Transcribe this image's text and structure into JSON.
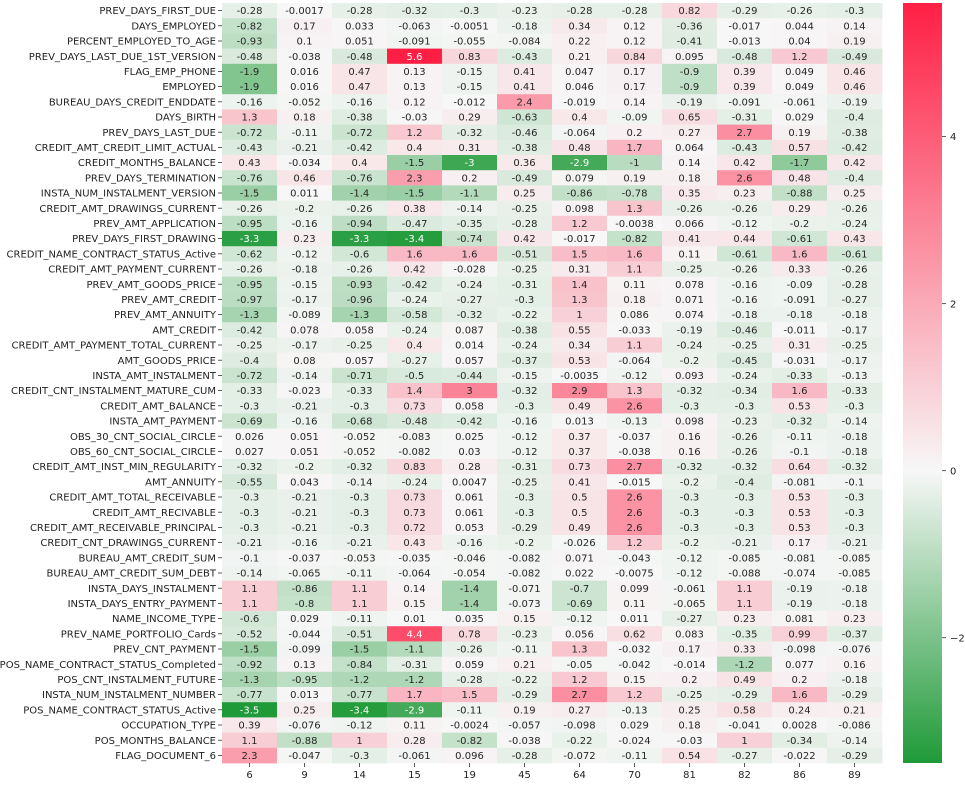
{
  "chart_data": {
    "type": "heatmap",
    "title": "",
    "xlabel": "",
    "ylabel": "",
    "x": [
      "6",
      "9",
      "14",
      "15",
      "19",
      "45",
      "64",
      "70",
      "81",
      "82",
      "86",
      "89"
    ],
    "y": [
      "PREV_DAYS_FIRST_DUE",
      "DAYS_EMPLOYED",
      "PERCENT_EMPLOYED_TO_AGE",
      "PREV_DAYS_LAST_DUE_1ST_VERSION",
      "FLAG_EMP_PHONE",
      "EMPLOYED",
      "BUREAU_DAYS_CREDIT_ENDDATE",
      "DAYS_BIRTH",
      "PREV_DAYS_LAST_DUE",
      "CREDIT_AMT_CREDIT_LIMIT_ACTUAL",
      "CREDIT_MONTHS_BALANCE",
      "PREV_DAYS_TERMINATION",
      "INSTA_NUM_INSTALMENT_VERSION",
      "CREDIT_AMT_DRAWINGS_CURRENT",
      "PREV_AMT_APPLICATION",
      "PREV_DAYS_FIRST_DRAWING",
      "CREDIT_NAME_CONTRACT_STATUS_Active",
      "CREDIT_AMT_PAYMENT_CURRENT",
      "PREV_AMT_GOODS_PRICE",
      "PREV_AMT_CREDIT",
      "PREV_AMT_ANNUITY",
      "AMT_CREDIT",
      "CREDIT_AMT_PAYMENT_TOTAL_CURRENT",
      "AMT_GOODS_PRICE",
      "INSTA_AMT_INSTALMENT",
      "CREDIT_CNT_INSTALMENT_MATURE_CUM",
      "CREDIT_AMT_BALANCE",
      "INSTA_AMT_PAYMENT",
      "OBS_30_CNT_SOCIAL_CIRCLE",
      "OBS_60_CNT_SOCIAL_CIRCLE",
      "CREDIT_AMT_INST_MIN_REGULARITY",
      "AMT_ANNUITY",
      "CREDIT_AMT_TOTAL_RECEIVABLE",
      "CREDIT_AMT_RECIVABLE",
      "CREDIT_AMT_RECEIVABLE_PRINCIPAL",
      "CREDIT_CNT_DRAWINGS_CURRENT",
      "BUREAU_AMT_CREDIT_SUM",
      "BUREAU_AMT_CREDIT_SUM_DEBT",
      "INSTA_DAYS_INSTALMENT",
      "INSTA_DAYS_ENTRY_PAYMENT",
      "NAME_INCOME_TYPE",
      "PREV_NAME_PORTFOLIO_Cards",
      "PREV_CNT_PAYMENT",
      "POS_NAME_CONTRACT_STATUS_Completed",
      "POS_CNT_INSTALMENT_FUTURE",
      "INSTA_NUM_INSTALMENT_NUMBER",
      "POS_NAME_CONTRACT_STATUS_Active",
      "OCCUPATION_TYPE",
      "POS_MONTHS_BALANCE",
      "FLAG_DOCUMENT_6"
    ],
    "values": [
      [
        "-0.28",
        "-0.0017",
        "-0.28",
        "-0.32",
        "-0.3",
        "-0.23",
        "-0.28",
        "-0.28",
        "0.82",
        "-0.29",
        "-0.26",
        "-0.3"
      ],
      [
        "-0.82",
        "0.17",
        "0.033",
        "-0.063",
        "-0.0051",
        "-0.18",
        "0.34",
        "0.12",
        "-0.36",
        "-0.017",
        "0.044",
        "0.14"
      ],
      [
        "-0.93",
        "0.1",
        "0.051",
        "-0.091",
        "-0.055",
        "-0.084",
        "0.22",
        "0.12",
        "-0.41",
        "-0.013",
        "0.04",
        "0.19"
      ],
      [
        "-0.48",
        "-0.038",
        "-0.48",
        "5.6",
        "0.83",
        "-0.43",
        "0.21",
        "0.84",
        "0.095",
        "-0.48",
        "1.2",
        "-0.49"
      ],
      [
        "-1.9",
        "0.016",
        "0.47",
        "0.13",
        "-0.15",
        "0.41",
        "0.047",
        "0.17",
        "-0.9",
        "0.39",
        "0.049",
        "0.46"
      ],
      [
        "-1.9",
        "0.016",
        "0.47",
        "0.13",
        "-0.15",
        "0.41",
        "0.046",
        "0.17",
        "-0.9",
        "0.39",
        "0.049",
        "0.46"
      ],
      [
        "-0.16",
        "-0.052",
        "-0.16",
        "0.12",
        "-0.012",
        "2.4",
        "-0.019",
        "0.14",
        "-0.19",
        "-0.091",
        "-0.061",
        "-0.19"
      ],
      [
        "1.3",
        "0.18",
        "-0.38",
        "-0.03",
        "0.29",
        "-0.63",
        "0.4",
        "-0.09",
        "0.65",
        "-0.31",
        "0.029",
        "-0.4"
      ],
      [
        "-0.72",
        "-0.11",
        "-0.72",
        "1.2",
        "-0.32",
        "-0.46",
        "-0.064",
        "0.2",
        "0.27",
        "2.7",
        "0.19",
        "-0.38"
      ],
      [
        "-0.43",
        "-0.21",
        "-0.42",
        "0.4",
        "0.31",
        "-0.38",
        "0.48",
        "1.7",
        "0.064",
        "-0.43",
        "0.57",
        "-0.42"
      ],
      [
        "0.43",
        "-0.034",
        "0.4",
        "-1.5",
        "-3",
        "0.36",
        "-2.9",
        "-1",
        "0.14",
        "0.42",
        "-1.7",
        "0.42"
      ],
      [
        "-0.76",
        "0.46",
        "-0.76",
        "2.3",
        "0.2",
        "-0.49",
        "0.079",
        "0.19",
        "0.18",
        "2.6",
        "0.48",
        "-0.4"
      ],
      [
        "-1.5",
        "0.011",
        "-1.4",
        "-1.5",
        "-1.1",
        "0.25",
        "-0.86",
        "-0.78",
        "0.35",
        "0.23",
        "-0.88",
        "0.25"
      ],
      [
        "-0.26",
        "-0.2",
        "-0.26",
        "0.38",
        "-0.14",
        "-0.25",
        "0.098",
        "1.3",
        "-0.26",
        "-0.26",
        "0.29",
        "-0.26"
      ],
      [
        "-0.95",
        "-0.16",
        "-0.94",
        "-0.47",
        "-0.35",
        "-0.28",
        "1.2",
        "-0.0038",
        "0.066",
        "-0.12",
        "-0.2",
        "-0.24"
      ],
      [
        "-3.3",
        "0.23",
        "-3.3",
        "-3.4",
        "-0.74",
        "0.42",
        "-0.017",
        "-0.82",
        "0.41",
        "0.44",
        "-0.61",
        "0.43"
      ],
      [
        "-0.62",
        "-0.12",
        "-0.6",
        "1.6",
        "1.6",
        "-0.51",
        "1.5",
        "1.6",
        "0.11",
        "-0.61",
        "1.6",
        "-0.61"
      ],
      [
        "-0.26",
        "-0.18",
        "-0.26",
        "0.42",
        "-0.028",
        "-0.25",
        "0.31",
        "1.1",
        "-0.25",
        "-0.26",
        "0.33",
        "-0.26"
      ],
      [
        "-0.95",
        "-0.15",
        "-0.93",
        "-0.42",
        "-0.24",
        "-0.31",
        "1.4",
        "0.11",
        "0.078",
        "-0.16",
        "-0.09",
        "-0.28"
      ],
      [
        "-0.97",
        "-0.17",
        "-0.96",
        "-0.24",
        "-0.27",
        "-0.3",
        "1.3",
        "0.18",
        "0.071",
        "-0.16",
        "-0.091",
        "-0.27"
      ],
      [
        "-1.3",
        "-0.089",
        "-1.3",
        "-0.58",
        "-0.32",
        "-0.22",
        "1",
        "0.086",
        "0.074",
        "-0.18",
        "-0.18",
        "-0.18"
      ],
      [
        "-0.42",
        "0.078",
        "0.058",
        "-0.24",
        "0.087",
        "-0.38",
        "0.55",
        "-0.033",
        "-0.19",
        "-0.46",
        "-0.011",
        "-0.17"
      ],
      [
        "-0.25",
        "-0.17",
        "-0.25",
        "0.4",
        "0.014",
        "-0.24",
        "0.34",
        "1.1",
        "-0.24",
        "-0.25",
        "0.31",
        "-0.25"
      ],
      [
        "-0.4",
        "0.08",
        "0.057",
        "-0.27",
        "0.057",
        "-0.37",
        "0.53",
        "-0.064",
        "-0.2",
        "-0.45",
        "-0.031",
        "-0.17"
      ],
      [
        "-0.72",
        "-0.14",
        "-0.71",
        "-0.5",
        "-0.44",
        "-0.15",
        "-0.0035",
        "-0.12",
        "0.093",
        "-0.24",
        "-0.33",
        "-0.13"
      ],
      [
        "-0.33",
        "-0.023",
        "-0.33",
        "1.4",
        "3",
        "-0.32",
        "2.9",
        "1.3",
        "-0.32",
        "-0.34",
        "1.6",
        "-0.33"
      ],
      [
        "-0.3",
        "-0.21",
        "-0.3",
        "0.73",
        "0.058",
        "-0.3",
        "0.49",
        "2.6",
        "-0.3",
        "-0.3",
        "0.53",
        "-0.3"
      ],
      [
        "-0.69",
        "-0.16",
        "-0.68",
        "-0.48",
        "-0.42",
        "-0.16",
        "0.013",
        "-0.13",
        "0.098",
        "-0.23",
        "-0.32",
        "-0.14"
      ],
      [
        "0.026",
        "0.051",
        "-0.052",
        "-0.083",
        "0.025",
        "-0.12",
        "0.37",
        "-0.037",
        "0.16",
        "-0.26",
        "-0.11",
        "-0.18"
      ],
      [
        "0.027",
        "0.051",
        "-0.052",
        "-0.082",
        "0.03",
        "-0.12",
        "0.37",
        "-0.038",
        "0.16",
        "-0.26",
        "-0.1",
        "-0.18"
      ],
      [
        "-0.32",
        "-0.2",
        "-0.32",
        "0.83",
        "0.28",
        "-0.31",
        "0.73",
        "2.7",
        "-0.32",
        "-0.32",
        "0.64",
        "-0.32"
      ],
      [
        "-0.55",
        "0.043",
        "-0.14",
        "-0.24",
        "0.0047",
        "-0.25",
        "0.41",
        "-0.015",
        "-0.2",
        "-0.4",
        "-0.081",
        "-0.1"
      ],
      [
        "-0.3",
        "-0.21",
        "-0.3",
        "0.73",
        "0.061",
        "-0.3",
        "0.5",
        "2.6",
        "-0.3",
        "-0.3",
        "0.53",
        "-0.3"
      ],
      [
        "-0.3",
        "-0.21",
        "-0.3",
        "0.73",
        "0.061",
        "-0.3",
        "0.5",
        "2.6",
        "-0.3",
        "-0.3",
        "0.53",
        "-0.3"
      ],
      [
        "-0.3",
        "-0.21",
        "-0.3",
        "0.72",
        "0.053",
        "-0.29",
        "0.49",
        "2.6",
        "-0.3",
        "-0.3",
        "0.53",
        "-0.3"
      ],
      [
        "-0.21",
        "-0.16",
        "-0.21",
        "0.43",
        "-0.16",
        "-0.2",
        "-0.026",
        "1.2",
        "-0.2",
        "-0.21",
        "0.17",
        "-0.21"
      ],
      [
        "-0.1",
        "-0.037",
        "-0.053",
        "-0.035",
        "-0.046",
        "-0.082",
        "0.071",
        "-0.043",
        "-0.12",
        "-0.085",
        "-0.081",
        "-0.085"
      ],
      [
        "-0.14",
        "-0.065",
        "-0.11",
        "-0.064",
        "-0.054",
        "-0.082",
        "0.022",
        "-0.0075",
        "-0.12",
        "-0.088",
        "-0.074",
        "-0.085"
      ],
      [
        "1.1",
        "-0.86",
        "1.1",
        "0.14",
        "-1.4",
        "-0.071",
        "-0.7",
        "0.099",
        "-0.061",
        "1.1",
        "-0.19",
        "-0.18"
      ],
      [
        "1.1",
        "-0.8",
        "1.1",
        "0.15",
        "-1.4",
        "-0.073",
        "-0.69",
        "0.11",
        "-0.065",
        "1.1",
        "-0.19",
        "-0.18"
      ],
      [
        "-0.6",
        "0.029",
        "-0.11",
        "0.01",
        "0.035",
        "0.15",
        "-0.12",
        "0.011",
        "-0.27",
        "0.23",
        "0.081",
        "0.23"
      ],
      [
        "-0.52",
        "-0.044",
        "-0.51",
        "4.4",
        "0.78",
        "-0.23",
        "0.056",
        "0.62",
        "0.083",
        "-0.35",
        "0.99",
        "-0.37"
      ],
      [
        "-1.5",
        "-0.099",
        "-1.5",
        "-1.1",
        "-0.26",
        "-0.11",
        "1.3",
        "-0.032",
        "0.17",
        "0.33",
        "-0.098",
        "-0.076"
      ],
      [
        "-0.92",
        "0.13",
        "-0.84",
        "-0.31",
        "0.059",
        "0.21",
        "-0.05",
        "-0.042",
        "-0.014",
        "-1.2",
        "0.077",
        "0.16"
      ],
      [
        "-1.3",
        "-0.95",
        "-1.2",
        "-1.2",
        "-0.28",
        "-0.22",
        "1.2",
        "0.15",
        "0.2",
        "0.49",
        "0.2",
        "-0.18"
      ],
      [
        "-0.77",
        "0.013",
        "-0.77",
        "1.7",
        "1.5",
        "-0.29",
        "2.7",
        "1.2",
        "-0.25",
        "-0.29",
        "1.6",
        "-0.29"
      ],
      [
        "-3.5",
        "0.25",
        "-3.4",
        "-2.9",
        "-0.11",
        "0.19",
        "0.27",
        "-0.13",
        "0.25",
        "0.58",
        "0.24",
        "0.21"
      ],
      [
        "0.39",
        "-0.076",
        "-0.12",
        "0.11",
        "-0.0024",
        "-0.057",
        "-0.098",
        "0.029",
        "0.18",
        "-0.041",
        "0.0028",
        "-0.086"
      ],
      [
        "1.1",
        "-0.88",
        "1",
        "0.28",
        "-0.82",
        "-0.038",
        "-0.22",
        "-0.024",
        "-0.03",
        "1",
        "-0.34",
        "-0.14"
      ],
      [
        "2.3",
        "-0.047",
        "-0.3",
        "-0.061",
        "0.096",
        "-0.28",
        "-0.072",
        "-0.11",
        "0.54",
        "-0.27",
        "-0.022",
        "-0.29"
      ]
    ],
    "colorbar": {
      "vmin": -3.5,
      "vmax": 5.6,
      "ticks": [
        "4",
        "2",
        "0",
        "−2"
      ],
      "tick_values": [
        4,
        2,
        0,
        -2
      ]
    },
    "colors": {
      "negative": "#1f9a38",
      "neutral": "#f7f7f7",
      "positive": "#ff1f44"
    },
    "grid": false,
    "legend": "colorbar-right"
  }
}
